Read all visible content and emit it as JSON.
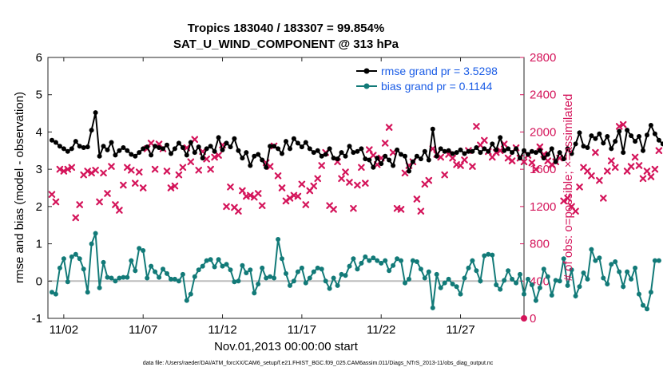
{
  "chart_data": {
    "type": "line",
    "title": "Tropics 183040 / 183307 = 99.854%",
    "subtitle": "SAT_U_WIND_COMPONENT @ 313 hPa",
    "xlabel": "Nov.01,2013 00:00:00 start",
    "ylabel": "rmse and bias (model - observation)",
    "ylabel_right": "# of obs: o=possible; ×=assimilated",
    "footer": "data file: /Users/raeder/DAI/ATM_forcXX/CAM6_setup/f.e21.FHIST_BGC.f09_025.CAM6assim.011/Diags_NTrS_2013-11/obs_diag_output.nc",
    "x_tick_labels": [
      "11/02",
      "11/07",
      "11/12",
      "11/17",
      "11/22",
      "11/27"
    ],
    "x_ticks_day": [
      2,
      7,
      12,
      17,
      22,
      27
    ],
    "xlim_day": [
      1,
      31
    ],
    "ylim": [
      -1,
      6
    ],
    "yticks": [
      -1,
      0,
      1,
      2,
      3,
      4,
      5,
      6
    ],
    "ylim_right": [
      0,
      2800
    ],
    "yticks_right": [
      0,
      400,
      800,
      1200,
      1600,
      2000,
      2400,
      2800
    ],
    "legend": {
      "position": "top-right",
      "entries": [
        "rmse grand pr = 3.5298",
        "bias grand pr = 0.1144"
      ]
    },
    "colors": {
      "rmse": "#000000",
      "bias": "#127a78",
      "obs": "#d4145a",
      "legend_text": "#1a5ce6",
      "zero_line": "#bdbdbd"
    },
    "series": [
      {
        "name": "rmse",
        "x_start_day": 1.25,
        "step_day": 0.25,
        "values": [
          3.78,
          3.72,
          3.62,
          3.55,
          3.48,
          3.55,
          3.75,
          3.62,
          3.58,
          3.6,
          4.05,
          4.52,
          3.35,
          3.62,
          3.52,
          3.72,
          3.38,
          3.5,
          3.58,
          3.5,
          3.4,
          3.35,
          3.45,
          3.55,
          3.6,
          3.38,
          3.62,
          3.58,
          3.55,
          3.65,
          3.42,
          3.55,
          3.7,
          3.58,
          3.38,
          3.72,
          3.45,
          3.6,
          3.3,
          3.55,
          3.62,
          3.48,
          3.85,
          3.52,
          3.7,
          3.6,
          3.82,
          3.5,
          3.3,
          3.45,
          3.1,
          3.35,
          3.4,
          3.25,
          3.05,
          3.62,
          3.62,
          3.55,
          3.42,
          3.75,
          3.55,
          3.82,
          3.7,
          3.6,
          3.72,
          3.55,
          3.45,
          3.5,
          3.35,
          3.4,
          3.55,
          3.3,
          3.28,
          3.45,
          3.35,
          3.62,
          3.45,
          3.48,
          3.55,
          3.28,
          3.25,
          3.05,
          3.3,
          3.15,
          3.35,
          3.25,
          3.1,
          3.52,
          3.4,
          3.35,
          2.95,
          3.2,
          3.35,
          3.28,
          3.48,
          3.25,
          4.08,
          3.35,
          3.55,
          3.48,
          3.5,
          3.42,
          3.45,
          3.52,
          3.42,
          3.48,
          3.48,
          3.58,
          3.45,
          3.55,
          3.48,
          3.68,
          3.52,
          3.85,
          3.5,
          3.55,
          3.45,
          3.55,
          3.3,
          3.5,
          3.4,
          3.48,
          3.45,
          3.5,
          3.3,
          3.4,
          3.55,
          3.2,
          3.45,
          3.28,
          3.55,
          3.42,
          3.68,
          3.98,
          3.62,
          3.58,
          3.9,
          3.82,
          3.95,
          3.7,
          3.88,
          3.55,
          3.75,
          4.02,
          3.45,
          4.05,
          3.9,
          3.75,
          3.88,
          3.5,
          3.92,
          4.18,
          3.95,
          3.78,
          3.68,
          3.78
        ]
      },
      {
        "name": "bias",
        "x_start_day": 1.25,
        "step_day": 0.25,
        "values": [
          -0.3,
          -0.35,
          0.35,
          0.6,
          -0.02,
          0.65,
          0.72,
          0.6,
          0.32,
          -0.3,
          1.0,
          1.28,
          -0.18,
          0.5,
          0.1,
          0.08,
          0.0,
          0.08,
          0.1,
          0.1,
          0.55,
          0.28,
          0.88,
          0.82,
          0.08,
          0.4,
          0.25,
          0.1,
          0.32,
          0.2,
          0.05,
          0.05,
          0.0,
          0.18,
          -0.52,
          -0.35,
          0.12,
          0.3,
          0.4,
          0.55,
          0.58,
          0.38,
          0.58,
          0.4,
          0.45,
          0.3,
          -0.02,
          0.0,
          0.42,
          0.22,
          0.3,
          -0.32,
          -0.08,
          0.35,
          0.08,
          0.12,
          0.08,
          1.12,
          0.6,
          0.2,
          -0.12,
          0.0,
          0.25,
          0.35,
          -0.05,
          0.08,
          0.25,
          0.35,
          0.32,
          0.0,
          -0.2,
          0.08,
          -0.12,
          0.18,
          0.15,
          0.4,
          0.6,
          0.32,
          0.48,
          0.65,
          0.55,
          0.62,
          0.55,
          0.48,
          0.55,
          0.28,
          0.42,
          0.6,
          0.55,
          -0.05,
          0.05,
          0.55,
          0.52,
          0.32,
          0.08,
          0.25,
          -0.72,
          0.18,
          -0.18,
          -0.05,
          0.05,
          -0.08,
          -0.15,
          -0.35,
          0.08,
          0.35,
          0.55,
          0.28,
          0.0,
          0.68,
          0.72,
          0.7,
          -0.1,
          -0.22,
          0.02,
          0.28,
          0.05,
          -0.05,
          0.18,
          -0.35,
          0.05,
          -0.1,
          -0.52,
          -0.18,
          0.32,
          0.12,
          -0.38,
          0.02,
          0.0,
          0.6,
          -0.12,
          0.3,
          -0.4,
          -0.15,
          0.22,
          0.05,
          0.85,
          0.55,
          0.62,
          0.08,
          -0.08,
          0.45,
          0.52,
          0.25,
          -0.15,
          0.25,
          0.05,
          0.35,
          -0.35,
          -0.65,
          -0.75,
          -0.3,
          0.55,
          0.55
        ]
      },
      {
        "name": "obs_assimilated",
        "unit": "count",
        "x_start_day": 1.25,
        "step_day": 0.25,
        "values": [
          1330,
          1250,
          1600,
          1580,
          1600,
          1620,
          1080,
          1220,
          1540,
          1580,
          1560,
          1590,
          1250,
          1560,
          1340,
          1630,
          1220,
          1160,
          1430,
          1620,
          1590,
          1450,
          1570,
          1400,
          1820,
          1880,
          1600,
          1870,
          1820,
          1580,
          1400,
          1420,
          1540,
          1620,
          1830,
          1680,
          1920,
          1590,
          1790,
          1710,
          1600,
          1730,
          1750,
          1860,
          1200,
          1410,
          1190,
          1150,
          1370,
          1310,
          1320,
          1300,
          1340,
          1210,
          1670,
          1630,
          1850,
          1530,
          1400,
          1260,
          1290,
          1320,
          1310,
          1440,
          1220,
          1370,
          1420,
          1500,
          1640,
          1780,
          1210,
          1170,
          1680,
          1500,
          1570,
          1460,
          1180,
          1430,
          1620,
          1450,
          1810,
          1750,
          1650,
          1720,
          1880,
          2050,
          1780,
          1180,
          1170,
          1560,
          1640,
          1680,
          1280,
          1150,
          1440,
          1480,
          1820,
          1760,
          1730,
          1540,
          1760,
          1720,
          1650,
          1640,
          1700,
          1800,
          1630,
          2060,
          1860,
          1910,
          1790,
          1730,
          1780,
          1800,
          1870,
          1720,
          1690,
          1830,
          1720,
          1680,
          1750,
          1670,
          1600,
          1840,
          1760,
          1690,
          1650,
          1680,
          1720,
          1260,
          1290,
          1200,
          1150,
          1410,
          1620,
          1580,
          1530,
          1780,
          1480,
          1290,
          1580,
          1690,
          1620,
          2060,
          2080,
          1580,
          1630,
          1730,
          1640,
          1500,
          1580,
          1520,
          1600,
          1800
        ]
      },
      {
        "name": "obs_endpoint_marker",
        "x_day": 31,
        "value": 0
      }
    ]
  }
}
